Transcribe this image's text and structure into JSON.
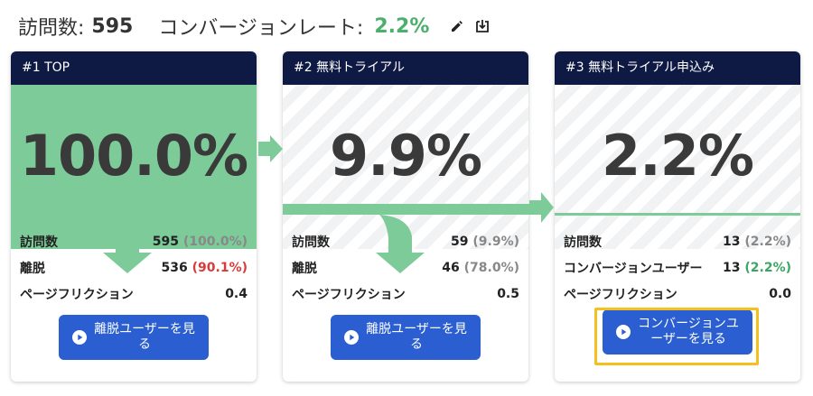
{
  "header": {
    "visits_label": "訪問数:",
    "visits_value": "595",
    "conversion_label": "コンバージョンレート:",
    "conversion_value": "2.2%",
    "icons": [
      "edit-icon",
      "export-icon"
    ]
  },
  "colors": {
    "header_bg": "#0f1a44",
    "flow_green": "#7ccb98",
    "button_blue": "#2a5ed1",
    "dropout_red": "#d93a3a",
    "conversion_green": "#3aa663",
    "highlight": "#f4c01e"
  },
  "steps": [
    {
      "title": "#1  TOP",
      "percent": "100.0%",
      "fill_fraction": 1.0,
      "rows": [
        {
          "label": "訪問数",
          "value": "595",
          "paren": "(100.0%)",
          "paren_color": "gray"
        },
        {
          "label": "離脱",
          "value": "536",
          "paren": "(90.1%)",
          "paren_color": "red"
        },
        {
          "label": "ページフリクション",
          "value": "0.4",
          "paren": ""
        }
      ],
      "button": "離脱ユーザーを見る"
    },
    {
      "title": "#2  無料トライアル",
      "percent": "9.9%",
      "fill_fraction": 0.099,
      "rows": [
        {
          "label": "訪問数",
          "value": "59",
          "paren": "(9.9%)",
          "paren_color": "gray"
        },
        {
          "label": "離脱",
          "value": "46",
          "paren": "(78.0%)",
          "paren_color": "gray"
        },
        {
          "label": "ページフリクション",
          "value": "0.5",
          "paren": ""
        }
      ],
      "button": "離脱ユーザーを見る"
    },
    {
      "title": "#3  無料トライアル申込み",
      "percent": "2.2%",
      "fill_fraction": 0.022,
      "rows": [
        {
          "label": "訪問数",
          "value": "13",
          "paren": "(2.2%)",
          "paren_color": "gray"
        },
        {
          "label": "コンバージョンユーザー",
          "value": "13",
          "paren": "(2.2%)",
          "paren_color": "green"
        },
        {
          "label": "ページフリクション",
          "value": "0.0",
          "paren": ""
        }
      ],
      "button": "コンバージョンユーザーを見る"
    }
  ]
}
